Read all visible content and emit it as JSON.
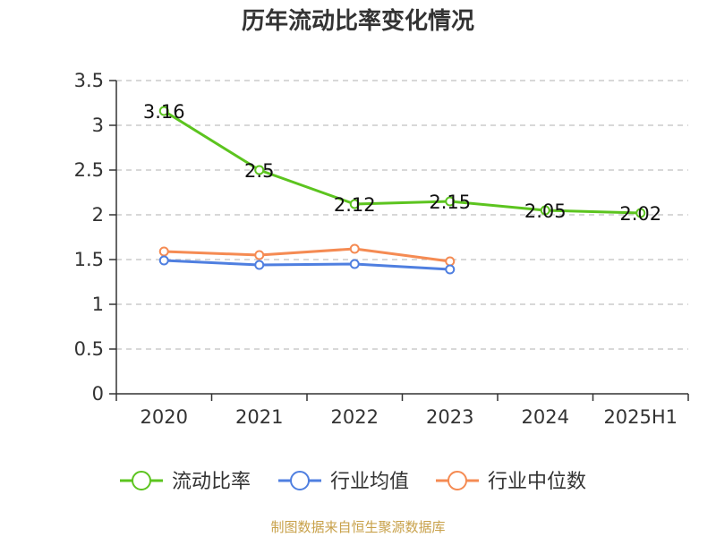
{
  "chart_data": {
    "type": "line",
    "title": "历年流动比率变化情况",
    "categories": [
      "2020",
      "2021",
      "2022",
      "2023",
      "2024",
      "2025H1"
    ],
    "ylim": [
      0,
      3.5
    ],
    "yticks": [
      "0",
      "0.5",
      "1",
      "1.5",
      "2",
      "2.5",
      "3",
      "3.5"
    ],
    "grid": "horizontal-dashed",
    "legend_position": "bottom",
    "series": [
      {
        "name": "流动比率",
        "color": "#5cc41f",
        "values": [
          3.16,
          2.5,
          2.12,
          2.15,
          2.05,
          2.02
        ],
        "labels": [
          "3.16",
          "2.5",
          "2.12",
          "2.15",
          "2.05",
          "2.02"
        ]
      },
      {
        "name": "行业均值",
        "color": "#4f7fe0",
        "values": [
          1.49,
          1.44,
          1.45,
          1.39,
          null,
          null
        ]
      },
      {
        "name": "行业中位数",
        "color": "#f58b53",
        "values": [
          1.59,
          1.55,
          1.62,
          1.48,
          null,
          null
        ]
      }
    ],
    "source": "制图数据来自恒生聚源数据库"
  }
}
